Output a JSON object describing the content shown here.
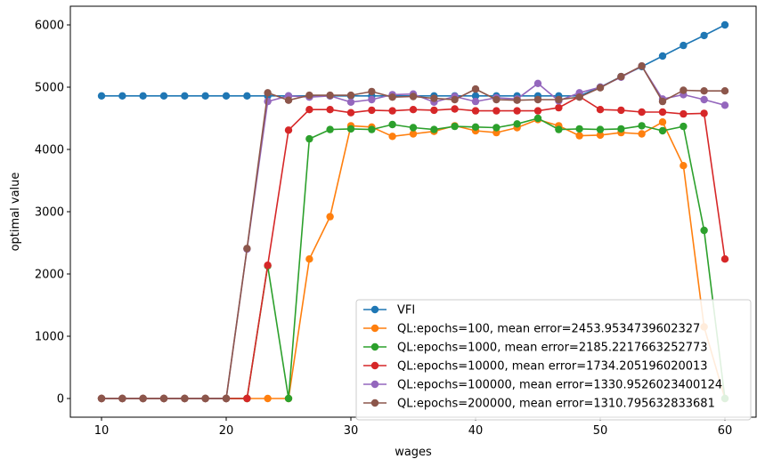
{
  "chart_data": {
    "type": "line",
    "xlabel": "wages",
    "ylabel": "optimal value",
    "xlim": [
      7.5,
      62.5
    ],
    "ylim": [
      -300,
      6300
    ],
    "xticks": [
      10,
      20,
      30,
      40,
      50,
      60
    ],
    "yticks": [
      0,
      1000,
      2000,
      3000,
      4000,
      5000,
      6000
    ],
    "grid": false,
    "legend_position": "lower-right",
    "x": [
      10,
      11.67,
      13.33,
      15,
      16.67,
      18.33,
      20,
      21.67,
      23.33,
      25,
      26.67,
      28.33,
      30,
      31.67,
      33.33,
      35,
      36.67,
      38.33,
      40,
      41.67,
      43.33,
      45,
      46.67,
      48.33,
      50,
      51.67,
      53.33,
      55,
      56.67,
      58.33,
      60
    ],
    "series": [
      {
        "name": "VFI",
        "color": "#1f77b4",
        "values": [
          4860,
          4860,
          4860,
          4860,
          4860,
          4860,
          4860,
          4860,
          4860,
          4860,
          4860,
          4860,
          4860,
          4860,
          4860,
          4860,
          4860,
          4860,
          4860,
          4860,
          4860,
          4860,
          4860,
          4860,
          5000,
          5170,
          5330,
          5500,
          5670,
          5830,
          6000
        ]
      },
      {
        "name": "QL:epochs=100, mean error=2453.9534739602327",
        "color": "#ff7f0e",
        "values": [
          0,
          0,
          0,
          0,
          0,
          0,
          0,
          0,
          0,
          0,
          2240,
          2920,
          4380,
          4360,
          4210,
          4250,
          4290,
          4380,
          4300,
          4270,
          4350,
          4480,
          4380,
          4220,
          4230,
          4270,
          4250,
          4440,
          3740,
          1150,
          0
        ]
      },
      {
        "name": "QL:epochs=1000, mean error=2185.2217663252773",
        "color": "#2ca02c",
        "values": [
          0,
          0,
          0,
          0,
          0,
          0,
          0,
          0,
          2130,
          0,
          4170,
          4320,
          4330,
          4320,
          4400,
          4350,
          4320,
          4370,
          4360,
          4350,
          4410,
          4500,
          4320,
          4330,
          4320,
          4330,
          4380,
          4300,
          4370,
          2700,
          0
        ]
      },
      {
        "name": "QL:epochs=10000, mean error=1734.205196020013",
        "color": "#d62728",
        "values": [
          0,
          0,
          0,
          0,
          0,
          0,
          0,
          0,
          2140,
          4310,
          4640,
          4640,
          4590,
          4630,
          4620,
          4640,
          4630,
          4650,
          4620,
          4620,
          4620,
          4620,
          4670,
          4850,
          4640,
          4630,
          4600,
          4600,
          4570,
          4580,
          2240
        ]
      },
      {
        "name": "QL:epochs=100000, mean error=1330.9526023400124",
        "color": "#9467bd",
        "values": [
          0,
          0,
          0,
          0,
          0,
          0,
          0,
          2400,
          4770,
          4860,
          4840,
          4860,
          4760,
          4800,
          4880,
          4890,
          4760,
          4850,
          4770,
          4830,
          4810,
          5060,
          4780,
          4910,
          5000,
          5160,
          5340,
          4810,
          4880,
          4800,
          4710
        ]
      },
      {
        "name": "QL:epochs=200000, mean error=1310.795632833681",
        "color": "#8c564b",
        "values": [
          0,
          0,
          0,
          0,
          0,
          0,
          0,
          2410,
          4910,
          4790,
          4870,
          4870,
          4870,
          4930,
          4840,
          4850,
          4820,
          4800,
          4970,
          4800,
          4790,
          4800,
          4800,
          4840,
          4990,
          5170,
          5340,
          4770,
          4950,
          4940,
          4940
        ]
      }
    ]
  }
}
